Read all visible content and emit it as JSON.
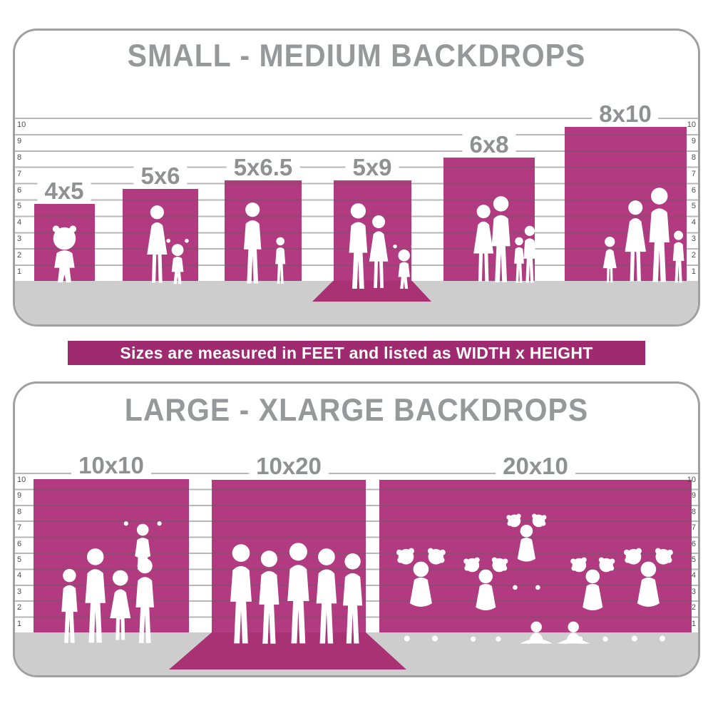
{
  "top_panel": {
    "title": "SMALL - MEDIUM BACKDROPS",
    "bars": [
      {
        "label": "4x5",
        "width_ft": 4,
        "height_ft": 5,
        "silhouette": "toddler-girl"
      },
      {
        "label": "5x6",
        "width_ft": 5,
        "height_ft": 6,
        "silhouette": "mother-and-child"
      },
      {
        "label": "5x6.5",
        "width_ft": 5,
        "height_ft": 6.5,
        "silhouette": "father-and-son"
      },
      {
        "label": "5x9",
        "width_ft": 5,
        "height_ft": 9,
        "silhouette": "family-of-three-on-floor-sweep"
      },
      {
        "label": "6x8",
        "width_ft": 6,
        "height_ft": 8,
        "silhouette": "family-of-four"
      },
      {
        "label": "8x10",
        "width_ft": 8,
        "height_ft": 10,
        "silhouette": "family-of-four"
      }
    ]
  },
  "banner": {
    "text": "Sizes are measured in FEET and listed as WIDTH x HEIGHT"
  },
  "bottom_panel": {
    "title": "LARGE - XLARGE BACKDROPS",
    "bars": [
      {
        "label": "10x10",
        "width_ft": 10,
        "height_ft": 10,
        "silhouette": "family-with-child-on-shoulders"
      },
      {
        "label": "10x20",
        "width_ft": 10,
        "height_ft": 20,
        "silhouette": "group-of-five-on-floor-sweep"
      },
      {
        "label": "20x10",
        "width_ft": 20,
        "height_ft": 10,
        "silhouette": "cheerleading-squad-pyramid"
      }
    ]
  },
  "scale": {
    "unit": "feet",
    "max_feet": 10,
    "ticks": [
      "10",
      "9",
      "8",
      "7",
      "6",
      "5",
      "4",
      "3",
      "2",
      "1"
    ]
  },
  "colors": {
    "backdrop": "#b23a80",
    "sweep": "#a93274",
    "banner": "#a02a70",
    "title_gray": "#97989a",
    "label_gray": "#8f9092",
    "floor_gray": "#cdcdcd",
    "panel_border": "#9fa0a2",
    "tick_text": "#4b4b4b",
    "silhouette": "#ffffff"
  }
}
